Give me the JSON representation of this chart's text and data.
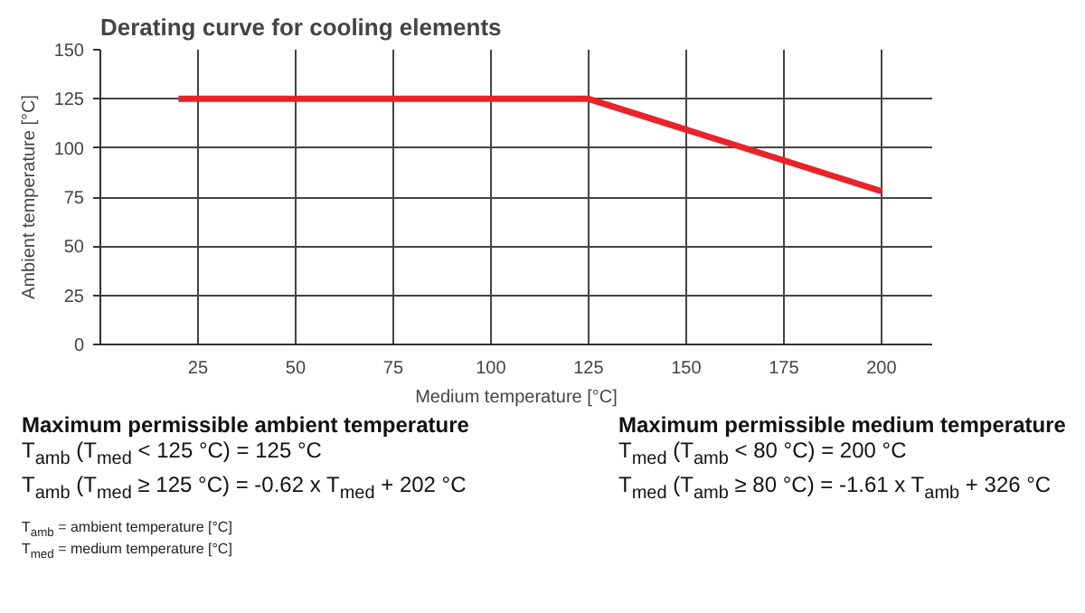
{
  "chart_data": {
    "type": "line",
    "title": "Derating curve for cooling elements",
    "xlabel": "Medium temperature [°C]",
    "ylabel": "Ambient temperature [°C]",
    "x": [
      20,
      125,
      200
    ],
    "series": [
      {
        "color": "#e8232a",
        "values": [
          125,
          125,
          78
        ]
      }
    ],
    "xlim": [
      0,
      213
    ],
    "ylim": [
      0,
      150
    ],
    "xticks": [
      25,
      50,
      75,
      100,
      125,
      150,
      175,
      200
    ],
    "yticks": [
      0,
      25,
      50,
      75,
      100,
      125,
      150
    ],
    "grid": true,
    "marker": "none",
    "line_style": "solid",
    "annotations": [
      "Maximum permissible ambient temperature",
      "T$_{amb}$ (T$_{med}$ < 125 °C) = 125 °C",
      "T$_{amb}$ (T$_{med}$ ≥ 125 °C) = -0.62 x T$_{med}$ + 202 °C",
      "Maximum permissible medium temperature",
      "T$_{med}$ (T$_{amb}$ < 80 °C) = 200 °C",
      "T$_{med}$ (T$_{amb}$ ≥ 80 °C) = -1.61 x T$_{amb}$ + 326 °C",
      "T$_{amb}$ = ambient temperature [°C]",
      "T$_{med}$ = medium temperature [°C]"
    ]
  }
}
